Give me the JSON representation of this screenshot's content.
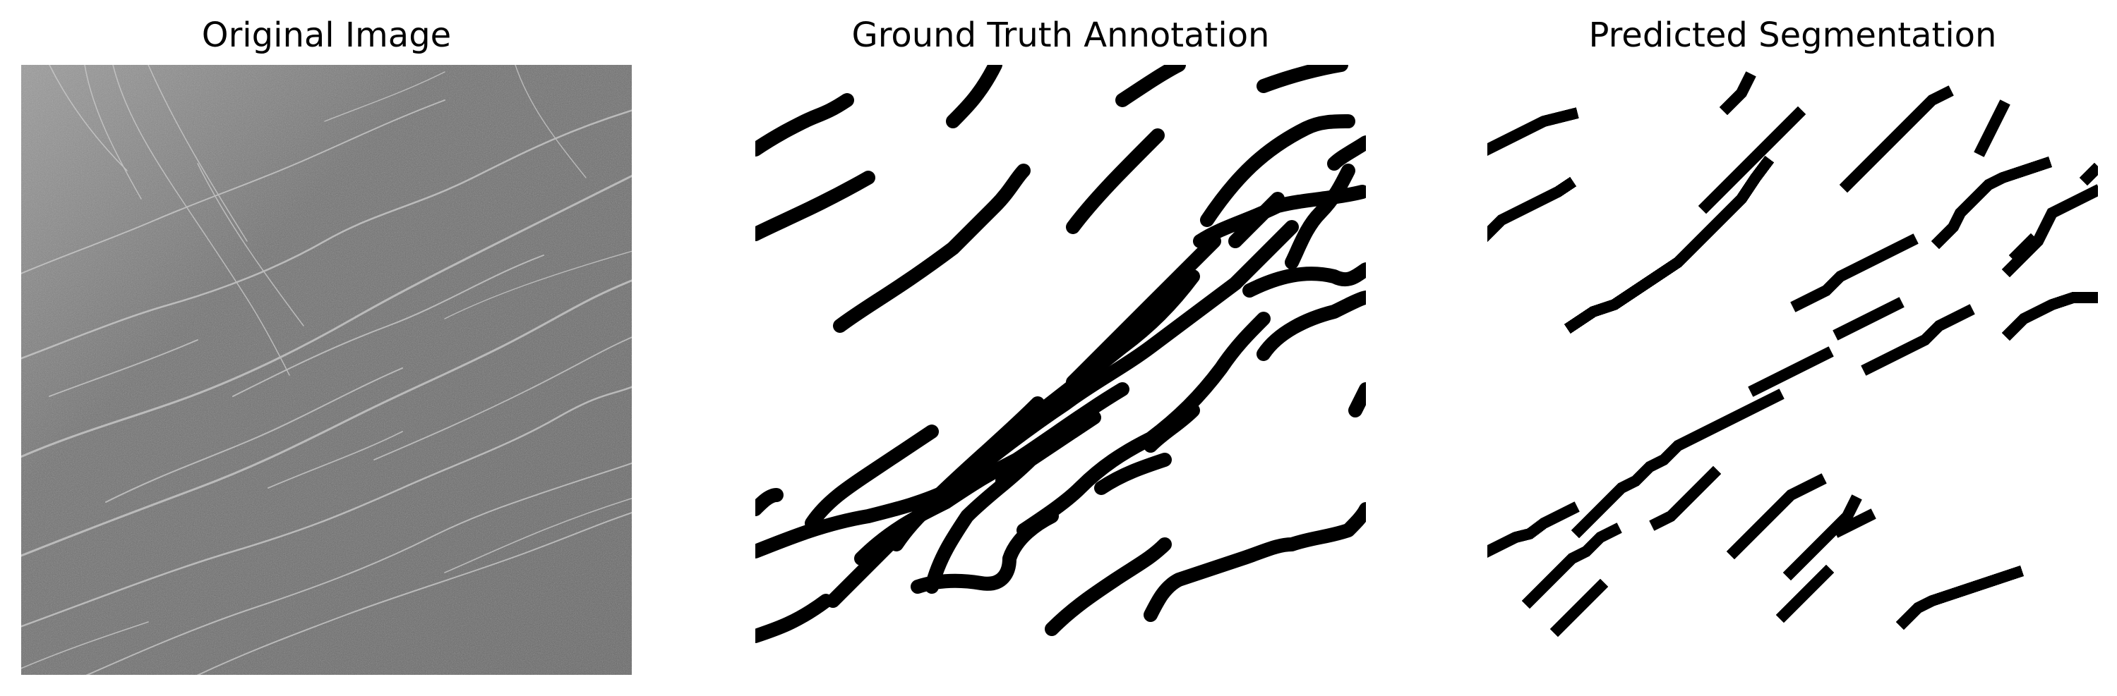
{
  "figure": {
    "panels": [
      {
        "title": "Original Image"
      },
      {
        "title": "Ground Truth Annotation"
      },
      {
        "title": "Predicted Segmentation"
      }
    ]
  },
  "colors": {
    "background": "#ffffff",
    "image_gray": "#6b6b6b",
    "ridge_light": "#d8d8d8",
    "mask_fill": "#000000"
  }
}
